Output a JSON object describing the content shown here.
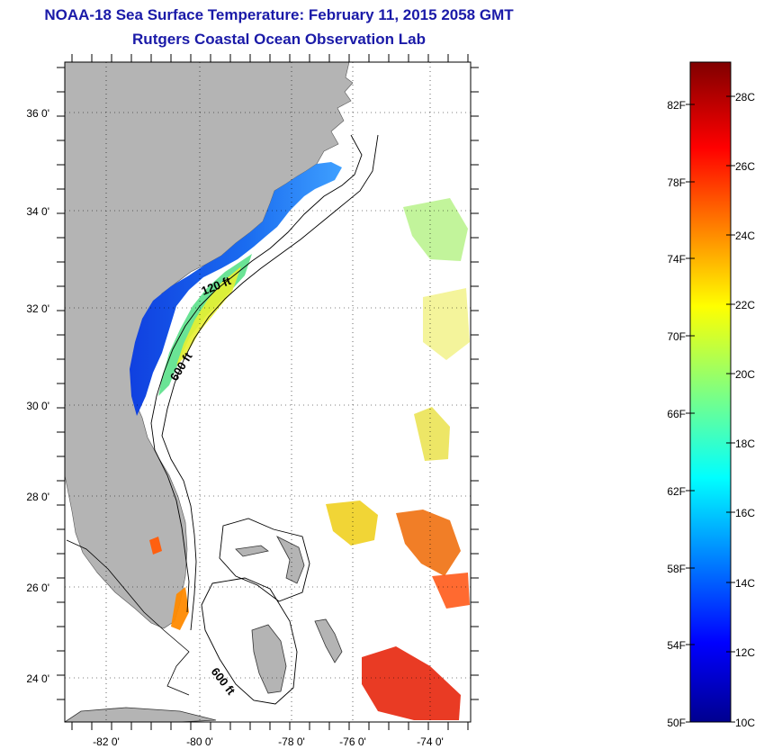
{
  "title": "NOAA-18 Sea Surface Temperature:  February 11, 2015 2058 GMT",
  "subtitle": "Rutgers Coastal Ocean Observation Lab",
  "map": {
    "lat_labels": [
      "36 0'",
      "34 0'",
      "32 0'",
      "30 0'",
      "28 0'",
      "26 0'",
      "24 0'"
    ],
    "lon_labels": [
      "-82 0'",
      "-80 0'",
      "-78 0'",
      "-76 0'",
      "-74 0'"
    ],
    "contour_labels": [
      "120 ft",
      "600 ft",
      "600 ft"
    ],
    "colors": {
      "land": "#b4b4b4",
      "frame": "#000000",
      "grid": "#000000"
    }
  },
  "colorbar": {
    "f_labels": [
      "82F",
      "78F",
      "74F",
      "70F",
      "66F",
      "62F",
      "58F",
      "54F",
      "50F"
    ],
    "c_labels": [
      "28C",
      "26C",
      "24C",
      "22C",
      "20C",
      "18C",
      "16C",
      "14C",
      "12C",
      "10C"
    ],
    "min_c": 10,
    "max_c": 29
  }
}
